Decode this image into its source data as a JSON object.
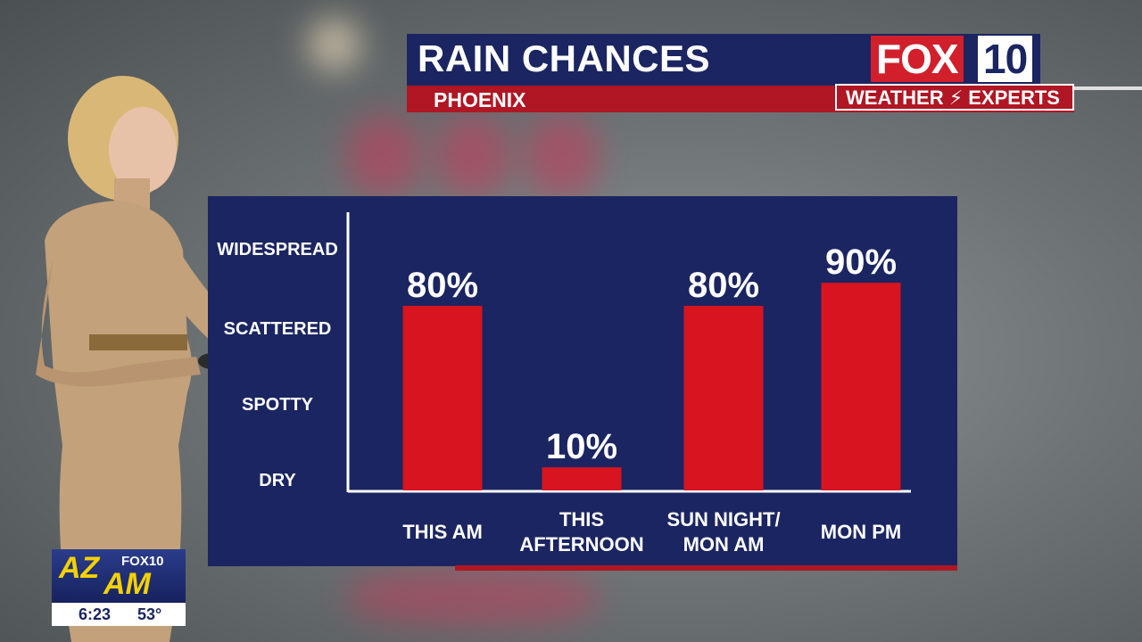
{
  "header": {
    "title": "RAIN CHANCES",
    "location": "PHOENIX",
    "logo_fox": "FOX",
    "logo_ten": "10",
    "badge": "WEATHER ⚡ EXPERTS"
  },
  "chart_data": {
    "type": "bar",
    "title": "RAIN CHANCES",
    "categories": [
      "THIS AM",
      "THIS AFTERNOON",
      "SUN NIGHT/ MON AM",
      "MON PM"
    ],
    "category_lines": [
      [
        "THIS AM"
      ],
      [
        "THIS",
        "AFTERNOON"
      ],
      [
        "SUN NIGHT/",
        "MON AM"
      ],
      [
        "MON PM"
      ]
    ],
    "values": [
      80,
      10,
      80,
      90
    ],
    "data_labels": [
      "80%",
      "10%",
      "80%",
      "90%"
    ],
    "y_tick_labels": [
      "WIDESPREAD",
      "SCATTERED",
      "SPOTTY",
      "DRY"
    ],
    "ylim": [
      0,
      100
    ],
    "grid": false,
    "bar_color": "#d81420",
    "background_color": "#1b2561"
  },
  "bug": {
    "az": "AZ",
    "am": "AM",
    "network": "FOX10",
    "time": "6:23",
    "temp": "53°"
  },
  "colors": {
    "navy": "#1b2561",
    "red": "#b01623",
    "bar_red": "#d81420",
    "yellow": "#f5d100"
  }
}
